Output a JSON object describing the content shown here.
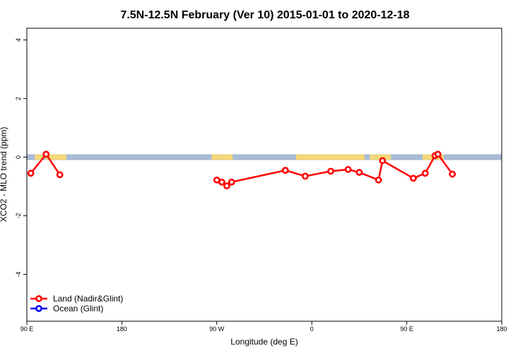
{
  "chart_data": {
    "type": "line",
    "title": "7.5N-12.5N February (Ver 10)   2015-01-01 to 2020-12-18",
    "xlabel": "Longitude (deg E)",
    "ylabel": "XCO2 - MLO trend (ppm)",
    "xlim": [
      90,
      270
    ],
    "ylim": [
      -5.6,
      4.4
    ],
    "x_ticks": [
      {
        "value": 90,
        "label": "90 E"
      },
      {
        "value": 126,
        "label": "180"
      },
      {
        "value": 162,
        "label": "90 W"
      },
      {
        "value": 198,
        "label": "0"
      },
      {
        "value": 234,
        "label": "90 E"
      },
      {
        "value": 270,
        "label": "180"
      }
    ],
    "y_ticks": [
      {
        "value": -4,
        "label": "-4"
      },
      {
        "value": -2,
        "label": "-2"
      },
      {
        "value": 0,
        "label": "0"
      },
      {
        "value": 2,
        "label": "2"
      },
      {
        "value": 4,
        "label": "4"
      }
    ],
    "band": {
      "y0": -0.1,
      "y1": 0.1,
      "ocean_color": "#a8bcd6",
      "land_color": "#f2d77c"
    },
    "land_segments": [
      [
        93,
        96
      ],
      [
        97,
        104
      ],
      [
        103,
        105
      ],
      [
        160,
        162
      ],
      [
        162,
        168
      ],
      [
        192,
        218
      ],
      [
        220,
        222
      ],
      [
        222,
        228
      ],
      [
        240,
        244
      ],
      [
        245,
        248
      ]
    ],
    "legend_position": "bottom-left",
    "series": [
      {
        "name": "Land (Nadir&Glint)",
        "color": "#ff0000",
        "x": [
          91.5,
          97.3,
          102.5
        ],
        "y": [
          -0.55,
          0.1,
          -0.6
        ],
        "extra_x": [
          162.0,
          163.9,
          165.8,
          167.6,
          188.0,
          195.5,
          205.2,
          211.8,
          216.0,
          223.3,
          224.8,
          236.5,
          241.0,
          244.7,
          245.8,
          251.3
        ],
        "extra_y": [
          -0.78,
          -0.85,
          -0.98,
          -0.85,
          -0.45,
          -0.65,
          -0.48,
          -0.42,
          -0.52,
          -0.78,
          -0.12,
          -0.72,
          -0.55,
          0.05,
          0.1,
          -0.58
        ]
      },
      {
        "name": "Ocean (Glint)",
        "color": "#0000ff",
        "x": [],
        "y": []
      }
    ]
  }
}
